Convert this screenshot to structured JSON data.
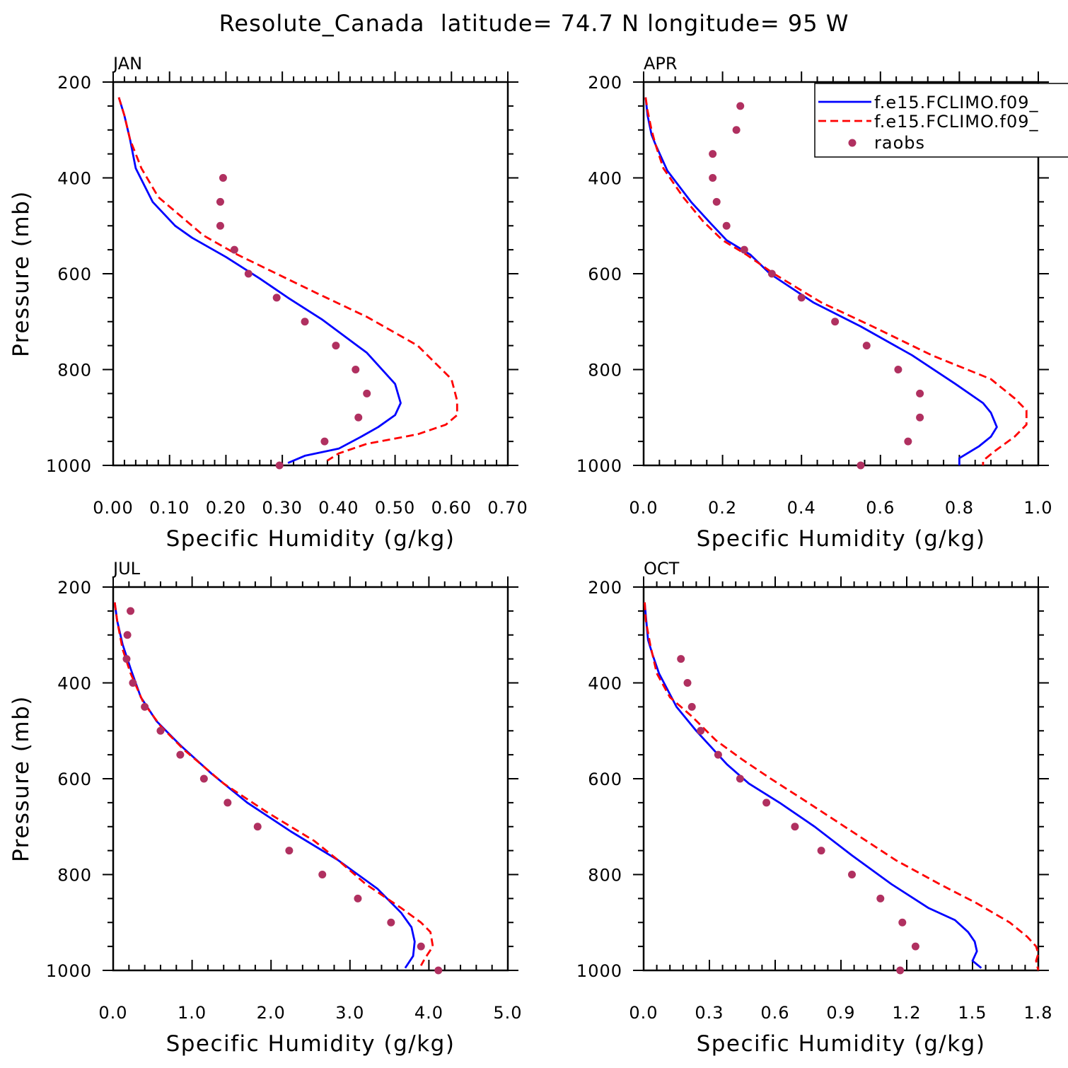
{
  "figure": {
    "title": "Resolute_Canada  latitude= 74.7 N longitude= 95 W"
  },
  "legend": {
    "entries": [
      {
        "label": "f.e15.FCLIMO.f09_",
        "style": "solid",
        "color": "#0000ff"
      },
      {
        "label": "f.e15.FCLIMO.f09_",
        "style": "dashed",
        "color": "#ff0000"
      },
      {
        "label": "raobs",
        "style": "dot",
        "color": "#b03060"
      }
    ]
  },
  "chart_data": [
    {
      "type": "line",
      "title": "JAN",
      "xlabel": "Specific Humidity (g/kg)",
      "ylabel": "Pressure (mb)",
      "xlim": [
        0,
        0.7
      ],
      "ylim": [
        200,
        1000
      ],
      "y_inverted": true,
      "xticks": [
        "0.00",
        "0.10",
        "0.20",
        "0.30",
        "0.40",
        "0.50",
        "0.60",
        "0.70"
      ],
      "yticks": [
        "200",
        "400",
        "600",
        "800",
        "1000"
      ],
      "series": [
        {
          "name": "f.e15.FCLIMO.f09_",
          "color": "#0000ff",
          "style": "solid",
          "x": [
            0.01,
            0.02,
            0.03,
            0.04,
            0.07,
            0.11,
            0.14,
            0.2,
            0.26,
            0.31,
            0.37,
            0.45,
            0.5,
            0.51,
            0.5,
            0.47,
            0.44,
            0.4,
            0.34,
            0.31
          ],
          "y": [
            232,
            270,
            320,
            380,
            450,
            500,
            525,
            565,
            610,
            650,
            695,
            765,
            830,
            870,
            895,
            920,
            940,
            965,
            980,
            995
          ]
        },
        {
          "name": "f.e15.FCLIMO.f09_",
          "color": "#ff0000",
          "style": "dashed",
          "x": [
            0.01,
            0.02,
            0.03,
            0.05,
            0.08,
            0.12,
            0.16,
            0.22,
            0.29,
            0.36,
            0.45,
            0.54,
            0.6,
            0.61,
            0.61,
            0.59,
            0.54,
            0.45,
            0.4,
            0.38
          ],
          "y": [
            232,
            270,
            320,
            380,
            440,
            480,
            520,
            560,
            600,
            640,
            690,
            750,
            820,
            865,
            895,
            915,
            935,
            955,
            975,
            990
          ]
        },
        {
          "name": "raobs",
          "color": "#b03060",
          "style": "dot",
          "x": [
            0.195,
            0.19,
            0.19,
            0.215,
            0.24,
            0.29,
            0.34,
            0.395,
            0.43,
            0.45,
            0.435,
            0.375,
            0.295
          ],
          "y": [
            400,
            450,
            500,
            550,
            600,
            650,
            700,
            750,
            800,
            850,
            900,
            950,
            1000
          ]
        }
      ]
    },
    {
      "type": "line",
      "title": "APR",
      "xlabel": "Specific Humidity (g/kg)",
      "ylabel": "",
      "xlim": [
        0,
        1.0
      ],
      "ylim": [
        200,
        1000
      ],
      "y_inverted": true,
      "xticks": [
        "0.0",
        "0.2",
        "0.4",
        "0.6",
        "0.8",
        "1.0"
      ],
      "yticks": [
        "200",
        "400",
        "600",
        "800",
        "1000"
      ],
      "series": [
        {
          "name": "f.e15.FCLIMO.f09_",
          "color": "#0000ff",
          "style": "solid",
          "x": [
            0.005,
            0.01,
            0.02,
            0.03,
            0.06,
            0.12,
            0.17,
            0.21,
            0.27,
            0.32,
            0.43,
            0.55,
            0.68,
            0.79,
            0.86,
            0.88,
            0.895,
            0.88,
            0.85,
            0.8,
            0.8
          ],
          "y": [
            232,
            270,
            310,
            330,
            385,
            450,
            495,
            530,
            560,
            600,
            660,
            710,
            770,
            830,
            870,
            890,
            920,
            940,
            960,
            985,
            1000
          ]
        },
        {
          "name": "f.e15.FCLIMO.f09_",
          "color": "#ff0000",
          "style": "dashed",
          "x": [
            0.005,
            0.01,
            0.02,
            0.03,
            0.05,
            0.1,
            0.15,
            0.2,
            0.26,
            0.33,
            0.45,
            0.58,
            0.73,
            0.88,
            0.94,
            0.97,
            0.97,
            0.94,
            0.89,
            0.86,
            0.86
          ],
          "y": [
            232,
            260,
            300,
            330,
            380,
            440,
            490,
            530,
            560,
            600,
            660,
            710,
            770,
            820,
            860,
            885,
            915,
            940,
            970,
            990,
            1000
          ]
        },
        {
          "name": "raobs",
          "color": "#b03060",
          "style": "dot",
          "x": [
            0.245,
            0.235,
            0.175,
            0.175,
            0.185,
            0.21,
            0.255,
            0.325,
            0.4,
            0.485,
            0.565,
            0.645,
            0.7,
            0.7,
            0.67,
            0.55
          ],
          "y": [
            250,
            300,
            350,
            400,
            450,
            500,
            550,
            600,
            650,
            700,
            750,
            800,
            850,
            900,
            950,
            1000
          ]
        }
      ]
    },
    {
      "type": "line",
      "title": "JUL",
      "xlabel": "Specific Humidity (g/kg)",
      "ylabel": "Pressure (mb)",
      "xlim": [
        0,
        5.0
      ],
      "ylim": [
        200,
        1000
      ],
      "y_inverted": true,
      "xticks": [
        "0.0",
        "1.0",
        "2.0",
        "3.0",
        "4.0",
        "5.0"
      ],
      "yticks": [
        "200",
        "400",
        "600",
        "800",
        "1000"
      ],
      "series": [
        {
          "name": "f.e15.FCLIMO.f09_",
          "color": "#0000ff",
          "style": "solid",
          "x": [
            0.02,
            0.05,
            0.12,
            0.22,
            0.35,
            0.55,
            0.85,
            1.25,
            1.7,
            2.25,
            2.85,
            3.35,
            3.65,
            3.78,
            3.82,
            3.8,
            3.7
          ],
          "y": [
            232,
            270,
            320,
            370,
            430,
            480,
            530,
            590,
            650,
            710,
            770,
            830,
            880,
            910,
            940,
            970,
            995
          ]
        },
        {
          "name": "f.e15.FCLIMO.f09_",
          "color": "#ff0000",
          "style": "dashed",
          "x": [
            0.02,
            0.05,
            0.12,
            0.22,
            0.38,
            0.6,
            0.9,
            1.4,
            1.95,
            2.55,
            2.85,
            3.2,
            3.65,
            3.9,
            4.02,
            4.05,
            3.95,
            3.9
          ],
          "y": [
            232,
            270,
            330,
            380,
            440,
            490,
            540,
            610,
            670,
            730,
            770,
            820,
            870,
            900,
            920,
            950,
            975,
            990
          ]
        },
        {
          "name": "raobs",
          "color": "#b03060",
          "style": "dot",
          "x": [
            0.22,
            0.18,
            0.17,
            0.25,
            0.4,
            0.6,
            0.85,
            1.15,
            1.45,
            1.83,
            2.23,
            2.65,
            3.1,
            3.52,
            3.9,
            4.12
          ],
          "y": [
            250,
            300,
            350,
            400,
            450,
            500,
            550,
            600,
            650,
            700,
            750,
            800,
            850,
            900,
            950,
            1000
          ]
        }
      ]
    },
    {
      "type": "line",
      "title": "OCT",
      "xlabel": "Specific Humidity (g/kg)",
      "ylabel": "",
      "xlim": [
        0,
        1.8
      ],
      "ylim": [
        200,
        1000
      ],
      "y_inverted": true,
      "xticks": [
        "0.0",
        "0.3",
        "0.6",
        "0.9",
        "1.2",
        "1.5",
        "1.8"
      ],
      "yticks": [
        "200",
        "400",
        "600",
        "800",
        "1000"
      ],
      "series": [
        {
          "name": "f.e15.FCLIMO.f09_",
          "color": "#0000ff",
          "style": "solid",
          "x": [
            0.005,
            0.01,
            0.02,
            0.04,
            0.07,
            0.15,
            0.24,
            0.3,
            0.38,
            0.48,
            0.62,
            0.78,
            0.95,
            1.13,
            1.3,
            1.42,
            1.48,
            1.51,
            1.52,
            1.5,
            1.54
          ],
          "y": [
            232,
            260,
            310,
            340,
            380,
            450,
            500,
            530,
            570,
            610,
            650,
            700,
            760,
            820,
            870,
            895,
            920,
            940,
            960,
            980,
            995
          ]
        },
        {
          "name": "f.e15.FCLIMO.f09_",
          "color": "#ff0000",
          "style": "dashed",
          "x": [
            0.005,
            0.01,
            0.03,
            0.06,
            0.12,
            0.22,
            0.33,
            0.45,
            0.58,
            0.75,
            0.95,
            1.15,
            1.35,
            1.52,
            1.67,
            1.75,
            1.79,
            1.8,
            1.79,
            1.8
          ],
          "y": [
            232,
            270,
            320,
            380,
            430,
            470,
            520,
            560,
            600,
            650,
            710,
            770,
            820,
            860,
            900,
            930,
            950,
            965,
            980,
            1000
          ]
        },
        {
          "name": "raobs",
          "color": "#b03060",
          "style": "dot",
          "x": [
            0.17,
            0.2,
            0.22,
            0.26,
            0.34,
            0.44,
            0.56,
            0.69,
            0.81,
            0.95,
            1.08,
            1.18,
            1.24,
            1.17
          ],
          "y": [
            350,
            400,
            450,
            500,
            550,
            600,
            650,
            700,
            750,
            800,
            850,
            900,
            950,
            1000
          ]
        }
      ]
    }
  ]
}
